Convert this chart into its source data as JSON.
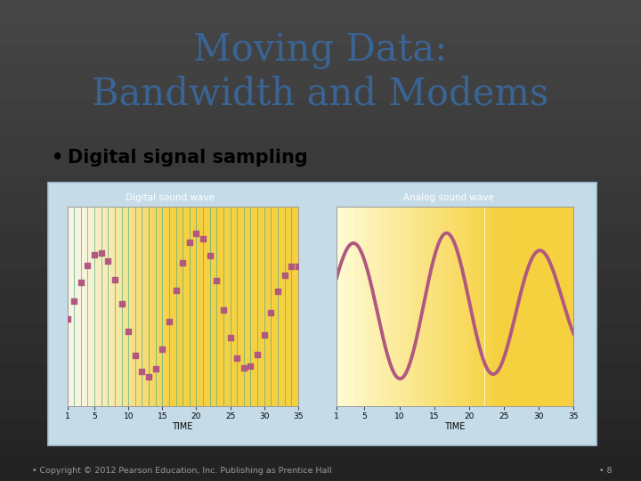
{
  "title_line1": "Moving Data:",
  "title_line2": "Bandwidth and Modems",
  "title_color": "#3A6494",
  "bullet_text": "Digital signal sampling",
  "chart_outer_bg": "#C5DCE8",
  "chart_outer_border": "#A8C8D8",
  "left_label_text": "Digital sound wave",
  "left_label_bg": "#E8860A",
  "right_label_text": "Analog sound wave",
  "right_label_bg": "#3AADA0",
  "left_plot_bg_cream": "#F8F5E0",
  "left_plot_bg_yellow": "#F5D040",
  "right_plot_bg_light": "#FDF5CC",
  "right_plot_bg_yellow": "#F5D040",
  "vertical_line_color": "#5AB090",
  "signal_color": "#B05880",
  "xlabel_left": "TIME",
  "xlabel_right": "TIME",
  "copyright_text": "Copyright © 2012 Pearson Education, Inc. Publishing as Prentice Hall",
  "page_number": "8",
  "footer_color": "#999999",
  "bg_top": "#E8E8E8",
  "bg_bottom": "#C8C8C8"
}
